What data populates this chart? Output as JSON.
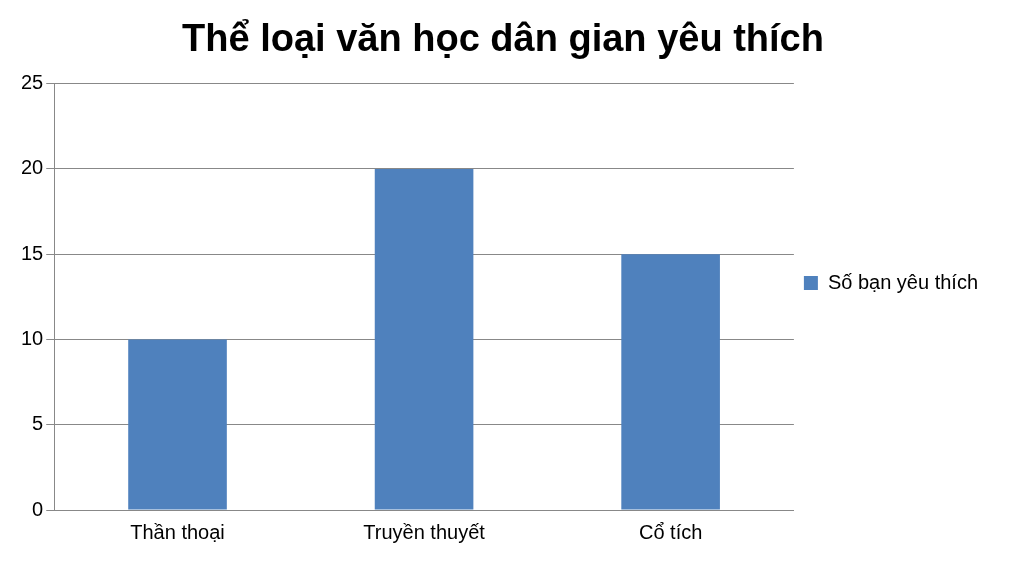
{
  "chart_data": {
    "type": "bar",
    "title": "Thể loại văn học dân gian yêu thích",
    "categories": [
      "Thần thoại",
      "Truyền thuyết",
      "Cổ tích"
    ],
    "series": [
      {
        "name": "Số bạn yêu thích",
        "color": "#4f81bd",
        "values": [
          10,
          20,
          15
        ]
      }
    ],
    "ylim": [
      0,
      25
    ],
    "yticks": [
      0,
      5,
      10,
      15,
      20,
      25
    ],
    "grid": "y",
    "legend": "right"
  }
}
